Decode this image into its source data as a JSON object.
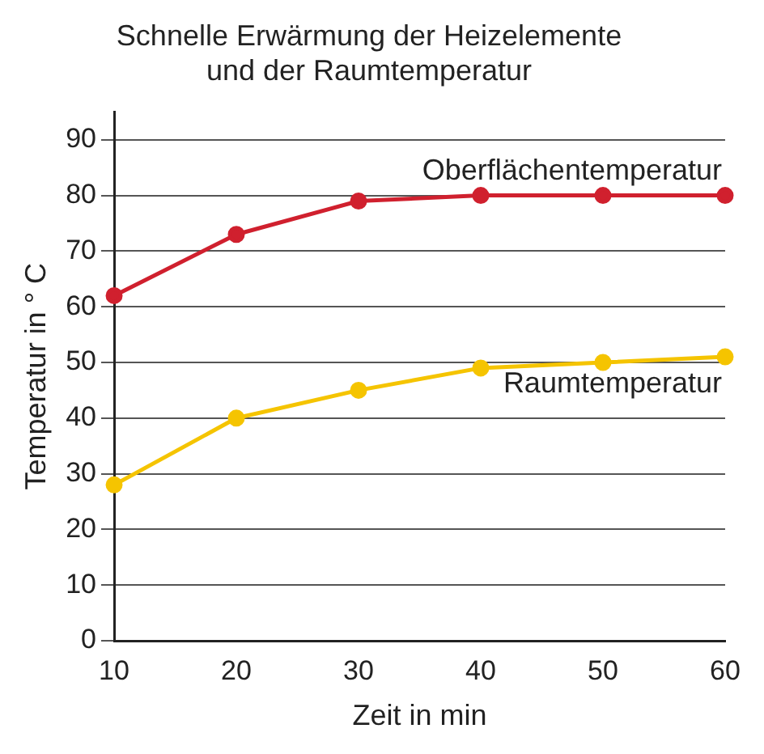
{
  "chart_data": {
    "type": "line",
    "title": "Schnelle Erwärmung der Heizelemente\nund der Raumtemperatur",
    "xlabel": "Zeit in min",
    "ylabel": "Temperatur in ° C",
    "x": [
      10,
      20,
      30,
      40,
      50,
      60
    ],
    "series": [
      {
        "name": "Oberflächentemperatur",
        "color": "#d0202e",
        "values": [
          62,
          73,
          79,
          80,
          80,
          80
        ]
      },
      {
        "name": "Raumtemperatur",
        "color": "#f5c400",
        "values": [
          28,
          40,
          45,
          49,
          50,
          51
        ]
      }
    ],
    "xlim": [
      10,
      60
    ],
    "xticks": [
      10,
      20,
      30,
      40,
      50,
      60
    ],
    "ylim": [
      0,
      95
    ],
    "yticks": [
      0,
      10,
      20,
      30,
      40,
      50,
      60,
      70,
      80,
      90
    ],
    "grid": "y",
    "legend": false,
    "marker": "circle",
    "line_style": "solid"
  }
}
